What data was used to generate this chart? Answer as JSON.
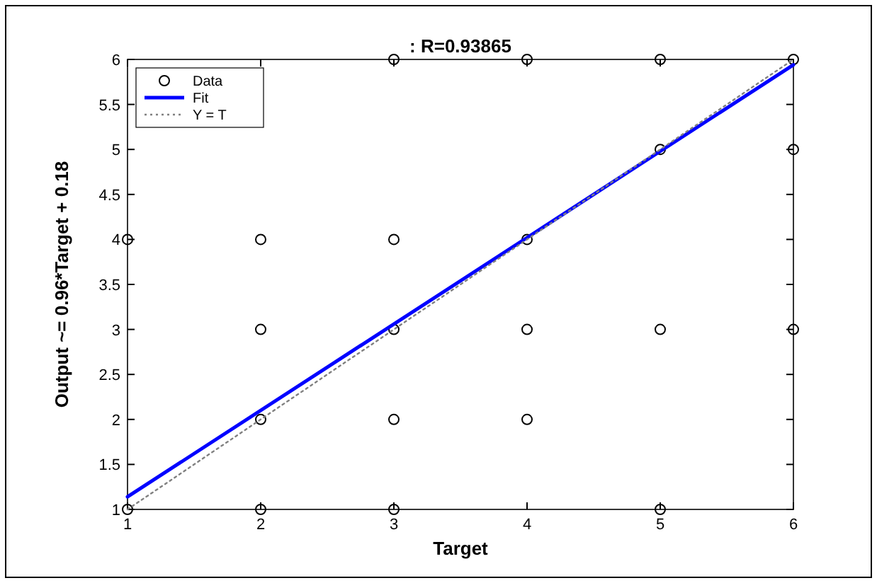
{
  "chart_data": {
    "type": "scatter",
    "title": ": R=0.93865",
    "xlabel": "Target",
    "ylabel": "Output ~= 0.96*Target + 0.18",
    "xlim": [
      1,
      6
    ],
    "ylim": [
      1,
      6
    ],
    "xticks": [
      1,
      2,
      3,
      4,
      5,
      6
    ],
    "yticks": [
      1,
      1.5,
      2,
      2.5,
      3,
      3.5,
      4,
      4.5,
      5,
      5.5,
      6
    ],
    "grid": false,
    "legend": "top left",
    "series": [
      {
        "name": "Data",
        "color": "#000000",
        "marker": "circle",
        "x": [
          1,
          1,
          2,
          2,
          2,
          2,
          3,
          3,
          3,
          3,
          3,
          4,
          4,
          4,
          4,
          5,
          5,
          5,
          5,
          6,
          6,
          6
        ],
        "values": [
          1,
          4,
          1,
          2,
          3,
          4,
          1,
          2,
          3,
          4,
          6,
          2,
          3,
          4,
          6,
          1,
          3,
          5,
          6,
          3,
          5,
          6
        ]
      },
      {
        "name": "Fit",
        "type": "line",
        "color": "#0000ff",
        "line_style": "solid",
        "x": [
          1,
          6
        ],
        "values": [
          1.14,
          5.94
        ]
      },
      {
        "name": "Y = T",
        "type": "line",
        "color": "#808080",
        "line_style": "dotted",
        "x": [
          1,
          6
        ],
        "values": [
          1,
          6
        ]
      }
    ]
  }
}
